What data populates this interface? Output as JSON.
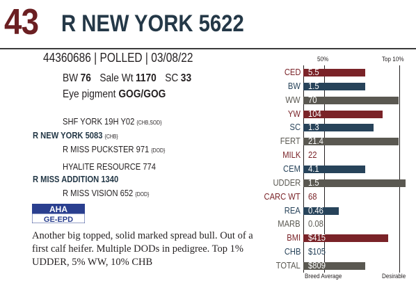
{
  "header": {
    "lot_number": "43",
    "animal_name": "R NEW YORK 5622"
  },
  "identity": {
    "line": "44360686 | POLLED | 03/08/22"
  },
  "stats": {
    "bw_label": "BW",
    "bw_value": "76",
    "sale_wt_label": "Sale Wt",
    "sale_wt_value": "1170",
    "sc_label": "SC",
    "sc_value": "33",
    "eye_label": "Eye pigment",
    "eye_value": "GOG/GOG"
  },
  "pedigree": {
    "sire_sire": "SHF YORK 19H Y02",
    "sire_sire_tags": "{CHB,SOD}",
    "sire": "R NEW YORK 5083",
    "sire_tags": "{CHB}",
    "sire_dam": "R MISS PUCKSTER 971",
    "sire_dam_tags": "{DOD}",
    "dam_sire": "HYALITE RESOURCE 774",
    "dam": "R MISS ADDITION 1340",
    "dam_dam": "R MISS VISION 652",
    "dam_dam_tags": "{DOD}"
  },
  "logo": {
    "line1": "AHA",
    "line2": "GE-EPD"
  },
  "description": "Another big topped, solid marked spread bull. Out of a first calf heifer. Multiple DODs in pedigree. Top 1% UDDER, 5% WW, 10% CHB",
  "epd_chart": {
    "top_left_label": "50%",
    "top_right_label": "Top 10%",
    "bottom_left_label": "Breed Average",
    "bottom_right_label": "Desirable",
    "colors": {
      "red": "#7a2328",
      "blue": "#27435a",
      "gray": "#5a5851"
    }
  },
  "chart_data": {
    "type": "bar",
    "categories": [
      "CED",
      "BW",
      "WW",
      "YW",
      "SC",
      "FERT",
      "MILK",
      "CEM",
      "UDDER",
      "CARC WT",
      "REA",
      "MARB",
      "BMI",
      "CHB",
      "TOTAL"
    ],
    "values_text": [
      "5.5",
      "1.5",
      "70",
      "104",
      "1.3",
      "21.4",
      "22",
      "4.1",
      "1.5",
      "68",
      "0.46",
      "0.08",
      "$415",
      "$105",
      "$809"
    ],
    "bar_fraction": [
      0.59,
      0.59,
      0.91,
      0.76,
      0.67,
      0.91,
      0,
      0.59,
      0.98,
      0,
      0.34,
      0,
      0.81,
      0,
      0.59
    ],
    "bar_color": [
      "red",
      "blue",
      "gray",
      "red",
      "blue",
      "gray",
      "red",
      "blue",
      "gray",
      "red",
      "blue",
      "gray",
      "red",
      "blue",
      "gray"
    ]
  }
}
